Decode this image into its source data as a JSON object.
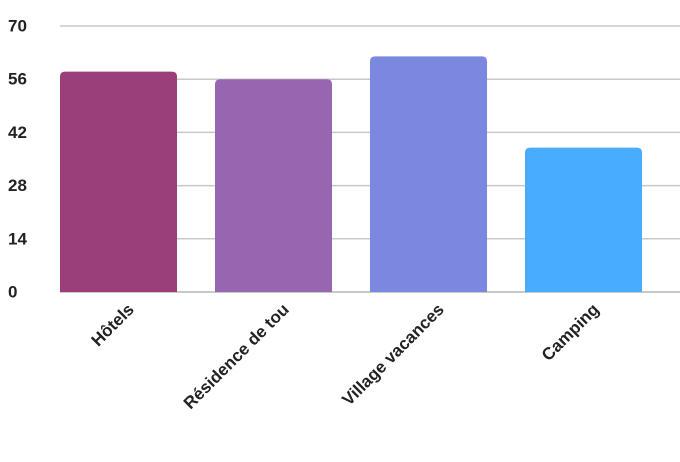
{
  "chart_data": {
    "type": "bar",
    "categories": [
      "Hôtels",
      "Résidence de tou",
      "Village vacances",
      "Camping"
    ],
    "values": [
      58,
      56,
      62,
      38
    ],
    "ylim": [
      0,
      70
    ],
    "yticks": [
      0,
      14,
      28,
      42,
      56,
      70
    ],
    "colors": [
      "#9b3f7a",
      "#9866b0",
      "#7b88df",
      "#49adff"
    ],
    "grid": true,
    "legend": "none",
    "title": "",
    "xlabel": "",
    "ylabel": ""
  }
}
